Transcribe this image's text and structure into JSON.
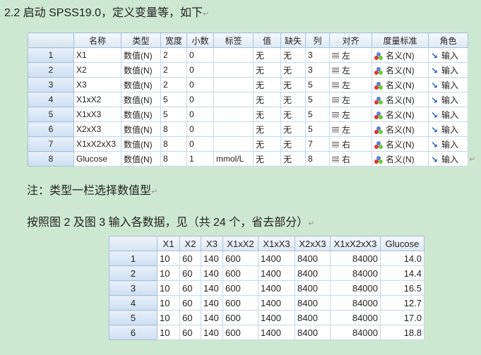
{
  "heading": "2.2 启动 SPSS19.0，定义变量等，如下",
  "paragraph_mark": "↵",
  "note": "注：类型一栏选择数值型",
  "instruction": "按照图 2 及图 3 输入各数据，见（共 24 个，省去部分）",
  "variable_view": {
    "columns": [
      "名称",
      "类型",
      "宽度",
      "小数",
      "标签",
      "值",
      "缺失",
      "列",
      "对齐",
      "度量标准",
      "角色"
    ],
    "rows": [
      {
        "n": "1",
        "name": "X1",
        "type": "数值(N)",
        "width": "2",
        "dec": "0",
        "label": "",
        "values": "无",
        "missing": "无",
        "cols": "3",
        "align": "左",
        "measure": "名义(N)",
        "role": "输入"
      },
      {
        "n": "2",
        "name": "X2",
        "type": "数值(N)",
        "width": "2",
        "dec": "0",
        "label": "",
        "values": "无",
        "missing": "无",
        "cols": "3",
        "align": "左",
        "measure": "名义(N)",
        "role": "输入"
      },
      {
        "n": "3",
        "name": "X3",
        "type": "数值(N)",
        "width": "2",
        "dec": "0",
        "label": "",
        "values": "无",
        "missing": "无",
        "cols": "5",
        "align": "左",
        "measure": "名义(N)",
        "role": "输入"
      },
      {
        "n": "4",
        "name": "X1xX2",
        "type": "数值(N)",
        "width": "5",
        "dec": "0",
        "label": "",
        "values": "无",
        "missing": "无",
        "cols": "5",
        "align": "左",
        "measure": "名义(N)",
        "role": "输入"
      },
      {
        "n": "5",
        "name": "X1xX3",
        "type": "数值(N)",
        "width": "5",
        "dec": "0",
        "label": "",
        "values": "无",
        "missing": "无",
        "cols": "5",
        "align": "左",
        "measure": "名义(N)",
        "role": "输入"
      },
      {
        "n": "6",
        "name": "X2xX3",
        "type": "数值(N)",
        "width": "8",
        "dec": "0",
        "label": "",
        "values": "无",
        "missing": "无",
        "cols": "5",
        "align": "左",
        "measure": "名义(N)",
        "role": "输入"
      },
      {
        "n": "7",
        "name": "X1xX2xX3",
        "type": "数值(N)",
        "width": "8",
        "dec": "0",
        "label": "",
        "values": "无",
        "missing": "无",
        "cols": "7",
        "align": "右",
        "measure": "名义(N)",
        "role": "输入"
      },
      {
        "n": "8",
        "name": "Glucose",
        "type": "数值(N)",
        "width": "8",
        "dec": "1",
        "label": "mmol/L",
        "values": "无",
        "missing": "无",
        "cols": "8",
        "align": "右",
        "measure": "名义(N)",
        "role": "输入"
      }
    ]
  },
  "data_view": {
    "columns": [
      "X1",
      "X2",
      "X3",
      "X1xX2",
      "X1xX3",
      "X2xX3",
      "X1xX2xX3",
      "Glucose"
    ],
    "rows": [
      [
        "1",
        "10",
        "60",
        "140",
        "600",
        "1400",
        "8400",
        "84000",
        "14.0"
      ],
      [
        "2",
        "10",
        "60",
        "140",
        "600",
        "1400",
        "8400",
        "84000",
        "14.4"
      ],
      [
        "3",
        "10",
        "60",
        "140",
        "600",
        "1400",
        "8400",
        "84000",
        "16.5"
      ],
      [
        "4",
        "10",
        "60",
        "140",
        "600",
        "1400",
        "8400",
        "84000",
        "12.7"
      ],
      [
        "5",
        "10",
        "60",
        "140",
        "600",
        "1400",
        "8400",
        "84000",
        "17.0"
      ],
      [
        "6",
        "10",
        "60",
        "140",
        "600",
        "1400",
        "8400",
        "84000",
        "18.8"
      ]
    ]
  },
  "icons": {
    "align": "align-lines-icon",
    "measure": "nominal-circles-icon",
    "role": "input-arrow-icon"
  },
  "colors": {
    "background": "#cde8d1",
    "header": "#dde8f4",
    "grid": "#c9d7e8"
  }
}
